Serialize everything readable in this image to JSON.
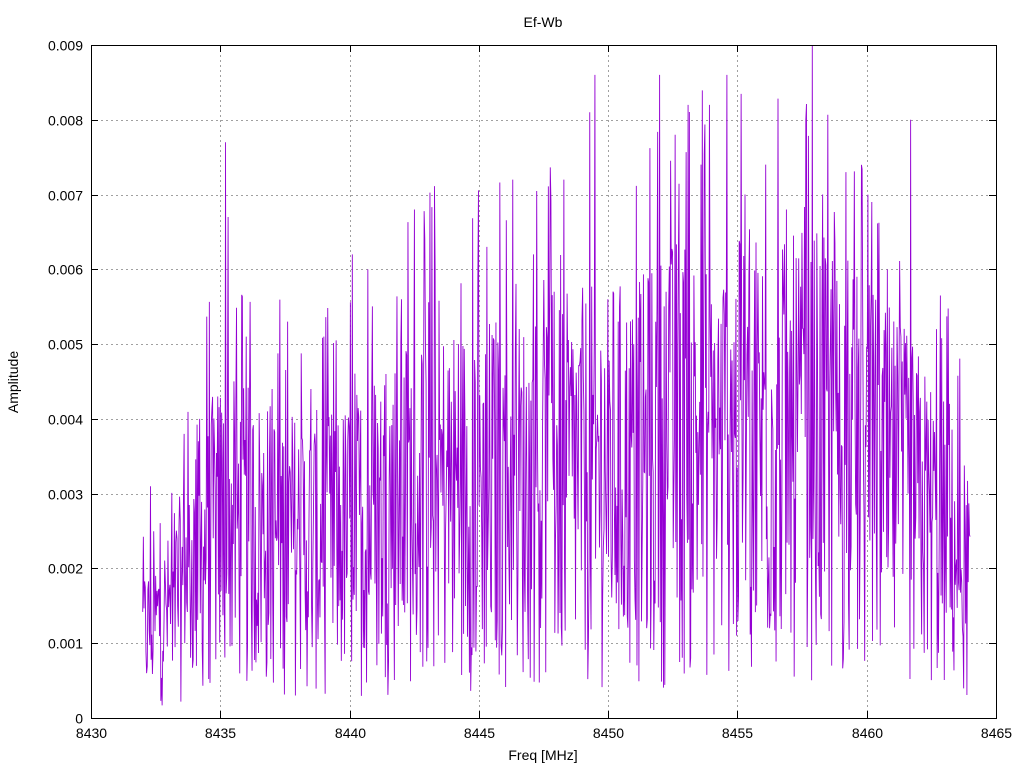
{
  "chart_data": {
    "type": "line",
    "title": "Ef-Wb",
    "xlabel": "Freq [MHz]",
    "ylabel": "Amplitude",
    "xlim": [
      8430,
      8465
    ],
    "ylim": [
      0,
      0.009
    ],
    "x_ticks": [
      "8430",
      "8435",
      "8440",
      "8445",
      "8450",
      "8455",
      "8460",
      "8465"
    ],
    "y_ticks": [
      "0",
      "0.001",
      "0.002",
      "0.003",
      "0.004",
      "0.005",
      "0.006",
      "0.007",
      "0.008",
      "0.009"
    ],
    "grid": true,
    "x_start": 8432.0,
    "x_end": 8464.0,
    "series_color": "#9400d3",
    "envelope": [
      [
        8432.0,
        0.0012
      ],
      [
        8433.0,
        0.0015
      ],
      [
        8434.0,
        0.0022
      ],
      [
        8435.0,
        0.0028
      ],
      [
        8436.0,
        0.0027
      ],
      [
        8437.0,
        0.0026
      ],
      [
        8438.0,
        0.0025
      ],
      [
        8439.0,
        0.0025
      ],
      [
        8440.0,
        0.0026
      ],
      [
        8441.0,
        0.0029
      ],
      [
        8442.0,
        0.0031
      ],
      [
        8443.0,
        0.0033
      ],
      [
        8444.0,
        0.0032
      ],
      [
        8445.0,
        0.0033
      ],
      [
        8446.0,
        0.0033
      ],
      [
        8447.0,
        0.0033
      ],
      [
        8448.0,
        0.0034
      ],
      [
        8449.0,
        0.0035
      ],
      [
        8450.0,
        0.0036
      ],
      [
        8451.0,
        0.0035
      ],
      [
        8452.0,
        0.0038
      ],
      [
        8453.0,
        0.004
      ],
      [
        8454.0,
        0.0038
      ],
      [
        8455.0,
        0.0039
      ],
      [
        8456.0,
        0.004
      ],
      [
        8457.0,
        0.0039
      ],
      [
        8458.0,
        0.004
      ],
      [
        8459.0,
        0.0037
      ],
      [
        8460.0,
        0.0036
      ],
      [
        8461.0,
        0.0033
      ],
      [
        8462.0,
        0.003
      ],
      [
        8463.0,
        0.0026
      ],
      [
        8464.0,
        0.002
      ]
    ],
    "peaks": [
      [
        8432.3,
        0.0031
      ],
      [
        8433.6,
        0.0038
      ],
      [
        8434.2,
        0.004
      ],
      [
        8434.9,
        0.0043
      ],
      [
        8435.2,
        0.0077
      ],
      [
        8435.3,
        0.0067
      ],
      [
        8436.0,
        0.0051
      ],
      [
        8437.0,
        0.0044
      ],
      [
        8437.6,
        0.0053
      ],
      [
        8438.5,
        0.0044
      ],
      [
        8439.0,
        0.0051
      ],
      [
        8440.1,
        0.0062
      ],
      [
        8440.7,
        0.006
      ],
      [
        8441.4,
        0.0046
      ],
      [
        8442.0,
        0.0056
      ],
      [
        8442.5,
        0.0068
      ],
      [
        8443.3,
        0.006
      ],
      [
        8444.2,
        0.005
      ],
      [
        8445.3,
        0.0063
      ],
      [
        8446.3,
        0.0072
      ],
      [
        8447.1,
        0.0062
      ],
      [
        8447.9,
        0.0057
      ],
      [
        8448.3,
        0.0072
      ],
      [
        8449.3,
        0.0081
      ],
      [
        8449.5,
        0.0086
      ],
      [
        8450.0,
        0.0056
      ],
      [
        8451.0,
        0.005
      ],
      [
        8452.0,
        0.0086
      ],
      [
        8452.6,
        0.0078
      ],
      [
        8453.1,
        0.0082
      ],
      [
        8453.6,
        0.0074
      ],
      [
        8454.6,
        0.0086
      ],
      [
        8455.3,
        0.007
      ],
      [
        8456.1,
        0.0074
      ],
      [
        8456.9,
        0.0068
      ],
      [
        8457.9,
        0.009
      ],
      [
        8458.3,
        0.007
      ],
      [
        8459.2,
        0.0073
      ],
      [
        8460.2,
        0.0069
      ],
      [
        8460.8,
        0.006
      ],
      [
        8461.7,
        0.008
      ],
      [
        8462.7,
        0.0052
      ],
      [
        8463.2,
        0.0042
      ],
      [
        8463.8,
        0.0026
      ]
    ]
  }
}
